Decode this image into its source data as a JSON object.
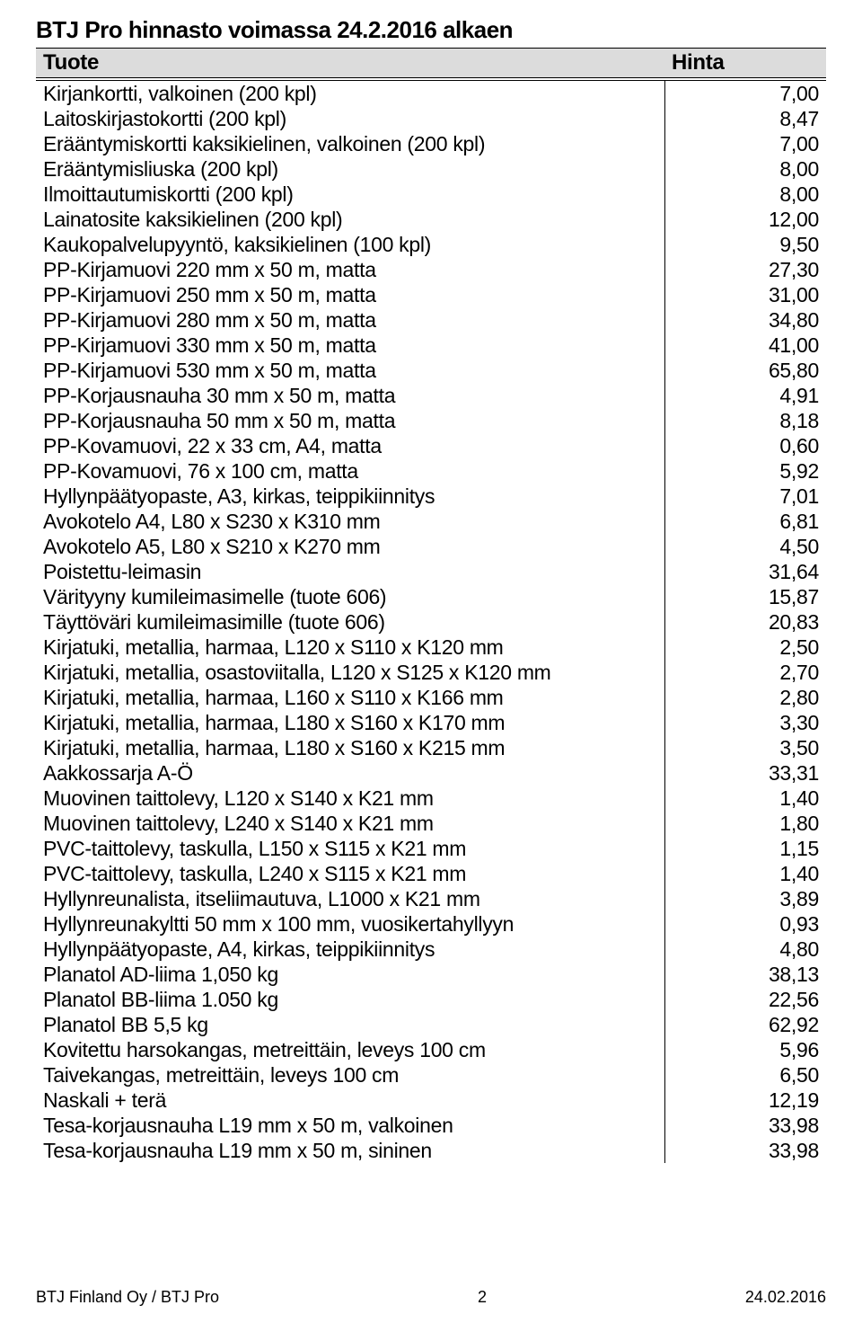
{
  "page": {
    "title": "BTJ Pro hinnasto voimassa 24.2.2016 alkaen",
    "header_product": "Tuote",
    "header_price": "Hinta",
    "footer_left": "BTJ Finland Oy / BTJ Pro",
    "footer_center": "2",
    "footer_right": "24.02.2016",
    "background_color": "#ffffff",
    "header_bg": "#dcdcdc",
    "font_family": "Arial Narrow",
    "title_fontsize": 26,
    "body_fontsize": 23
  },
  "rows": [
    {
      "p": "Kirjankortti, valkoinen (200 kpl)",
      "v": "7,00"
    },
    {
      "p": "Laitoskirjastokortti (200 kpl)",
      "v": "8,47"
    },
    {
      "p": "Erääntymiskortti kaksikielinen, valkoinen (200 kpl)",
      "v": "7,00"
    },
    {
      "p": "Erääntymisliuska (200 kpl)",
      "v": "8,00"
    },
    {
      "p": "Ilmoittautumiskortti (200 kpl)",
      "v": "8,00"
    },
    {
      "p": "Lainatosite kaksikielinen (200 kpl)",
      "v": "12,00"
    },
    {
      "p": "Kaukopalvelupyyntö, kaksikielinen (100 kpl)",
      "v": "9,50"
    },
    {
      "p": "PP-Kirjamuovi 220 mm x 50 m, matta",
      "v": "27,30"
    },
    {
      "p": "PP-Kirjamuovi 250 mm x 50 m, matta",
      "v": "31,00"
    },
    {
      "p": "PP-Kirjamuovi 280 mm x 50 m, matta",
      "v": "34,80"
    },
    {
      "p": "PP-Kirjamuovi 330 mm x 50 m, matta",
      "v": "41,00"
    },
    {
      "p": "PP-Kirjamuovi 530 mm x 50 m, matta",
      "v": "65,80"
    },
    {
      "p": "PP-Korjausnauha 30 mm x 50 m, matta",
      "v": "4,91"
    },
    {
      "p": "PP-Korjausnauha 50 mm x 50 m, matta",
      "v": "8,18"
    },
    {
      "p": "PP-Kovamuovi, 22 x 33 cm, A4, matta",
      "v": "0,60"
    },
    {
      "p": "PP-Kovamuovi, 76 x 100 cm, matta",
      "v": "5,92"
    },
    {
      "p": "Hyllynpäätyopaste, A3, kirkas, teippikiinnitys",
      "v": "7,01"
    },
    {
      "p": "Avokotelo A4, L80 x S230 x K310 mm",
      "v": "6,81"
    },
    {
      "p": "Avokotelo A5, L80 x S210 x K270 mm",
      "v": "4,50"
    },
    {
      "p": "Poistettu-leimasin",
      "v": "31,64"
    },
    {
      "p": "Värityyny kumileimasimelle (tuote 606)",
      "v": "15,87"
    },
    {
      "p": "Täyttöväri kumileimasimille (tuote 606)",
      "v": "20,83"
    },
    {
      "p": "Kirjatuki, metallia, harmaa, L120 x S110 x K120 mm",
      "v": "2,50"
    },
    {
      "p": "Kirjatuki, metallia, osastoviitalla,  L120 x S125 x K120 mm",
      "v": "2,70"
    },
    {
      "p": "Kirjatuki, metallia, harmaa, L160 x S110 x K166 mm",
      "v": "2,80"
    },
    {
      "p": "Kirjatuki, metallia, harmaa, L180 x S160 x K170 mm",
      "v": "3,30"
    },
    {
      "p": "Kirjatuki, metallia, harmaa,  L180 x S160 x K215 mm",
      "v": "3,50"
    },
    {
      "p": "Aakkossarja A-Ö",
      "v": "33,31"
    },
    {
      "p": "Muovinen taittolevy, L120 x S140 x K21 mm",
      "v": "1,40"
    },
    {
      "p": "Muovinen taittolevy, L240 x S140 x K21 mm",
      "v": "1,80"
    },
    {
      "p": "PVC-taittolevy, taskulla, L150 x S115 x K21 mm",
      "v": "1,15"
    },
    {
      "p": "PVC-taittolevy, taskulla, L240 x S115 x K21 mm",
      "v": "1,40"
    },
    {
      "p": "Hyllynreunalista, itseliimautuva, L1000 x K21 mm",
      "v": "3,89"
    },
    {
      "p": "Hyllynreunakyltti 50 mm x 100 mm, vuosikertahyllyyn",
      "v": "0,93"
    },
    {
      "p": "Hyllynpäätyopaste, A4, kirkas, teippikiinnitys",
      "v": "4,80"
    },
    {
      "p": "Planatol AD-liima 1,050 kg",
      "v": "38,13"
    },
    {
      "p": "Planatol BB-liima 1.050 kg",
      "v": "22,56"
    },
    {
      "p": "Planatol BB 5,5 kg",
      "v": "62,92"
    },
    {
      "p": "Kovitettu harsokangas, metreittäin, leveys 100 cm",
      "v": "5,96"
    },
    {
      "p": "Taivekangas, metreittäin, leveys 100 cm",
      "v": "6,50"
    },
    {
      "p": "Naskali + terä",
      "v": "12,19"
    },
    {
      "p": "Tesa-korjausnauha L19 mm x 50 m, valkoinen",
      "v": "33,98"
    },
    {
      "p": "Tesa-korjausnauha L19 mm x 50 m, sininen",
      "v": "33,98"
    }
  ]
}
